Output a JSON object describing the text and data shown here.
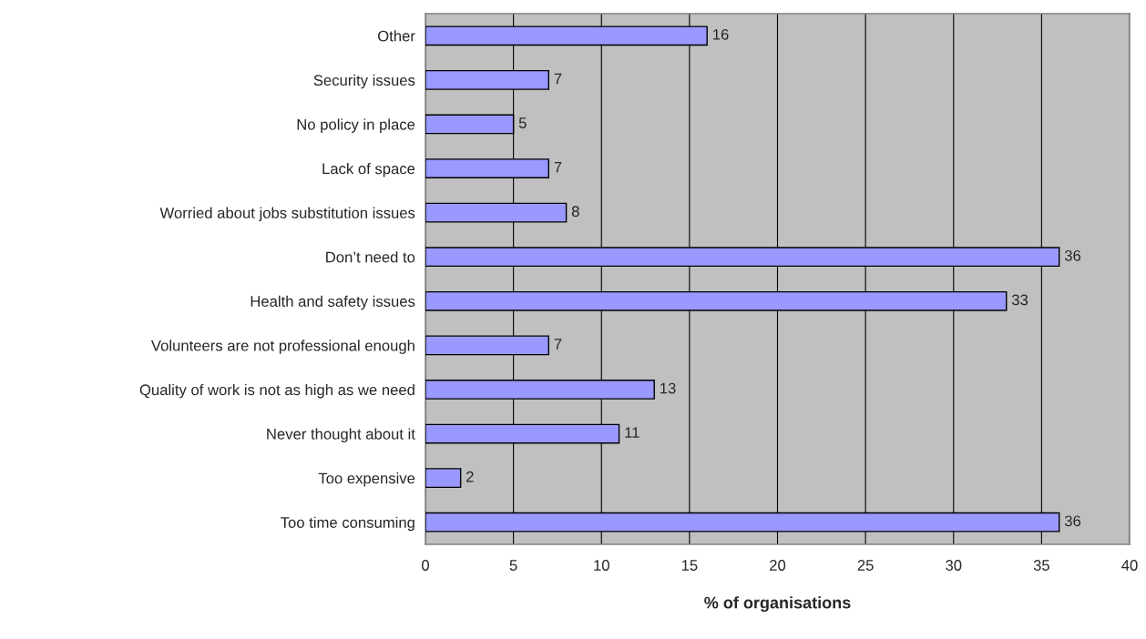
{
  "chart_data": {
    "type": "bar",
    "orientation": "horizontal",
    "xlabel": "% of organisations",
    "categories": [
      "Other",
      "Security issues",
      "No policy in place",
      "Lack of space",
      "Worried about jobs substitution issues",
      "Don’t need to",
      "Health and safety issues",
      "Volunteers are not professional enough",
      "Quality of work is not as high as we need",
      "Never thought about it",
      "Too expensive",
      "Too time consuming"
    ],
    "values": [
      16,
      7,
      5,
      7,
      8,
      36,
      33,
      7,
      13,
      11,
      2,
      36
    ],
    "color": "#9999ff",
    "xlim": [
      0,
      40
    ],
    "xticks": [
      0,
      5,
      10,
      15,
      20,
      25,
      30,
      35,
      40
    ],
    "grid": "x",
    "data_labels": true
  }
}
